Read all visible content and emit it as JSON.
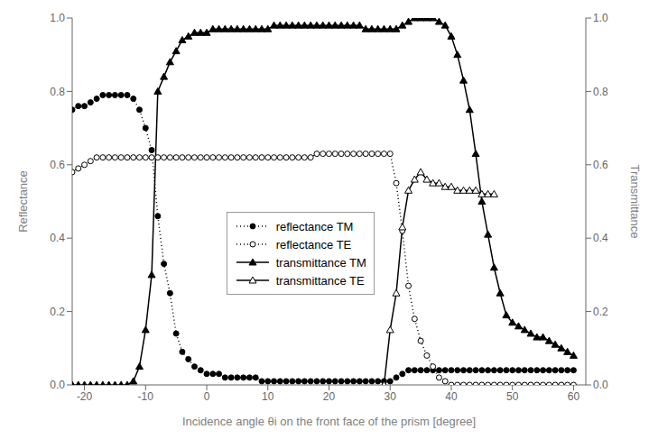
{
  "chart_data": {
    "type": "line",
    "xlabel": "Incidence angle θi on the front face of the prism  [degree]",
    "ylabel": "Reflectance",
    "y2label": "Transmittance",
    "xlim": [
      -22,
      62
    ],
    "xticks": [
      -20,
      -10,
      0,
      10,
      20,
      30,
      40,
      50,
      60
    ],
    "ylim": [
      0.0,
      1.0
    ],
    "yticks": [
      {
        "value": 0,
        "label": "0.0"
      },
      0.2,
      0.4,
      0.6,
      0.8,
      {
        "value": 1,
        "label": "1.0"
      }
    ],
    "y2lim": [
      0.0,
      1.0
    ],
    "y2ticks": [
      {
        "value": 0,
        "label": "0.0"
      },
      0.2,
      0.4,
      0.6,
      0.8,
      {
        "value": 1,
        "label": "1.0"
      }
    ],
    "grid": false,
    "legend": "lower center",
    "series": [
      {
        "name": "reflectance TM",
        "color": "#000000",
        "marker": "circle",
        "line_style": "dotted",
        "x": [
          -22,
          -21,
          -20,
          -19,
          -18,
          -17,
          -16,
          -15,
          -14,
          -13,
          -12,
          -11,
          -10,
          -9,
          -8,
          -7,
          -6,
          -5,
          -4,
          -3,
          -2,
          -1,
          0,
          1,
          2,
          3,
          4,
          5,
          6,
          7,
          8,
          9,
          10,
          11,
          12,
          13,
          14,
          15,
          16,
          17,
          18,
          19,
          20,
          21,
          22,
          23,
          24,
          25,
          26,
          27,
          28,
          29,
          30,
          31,
          32,
          33,
          34,
          35,
          36,
          37,
          38,
          39,
          40,
          41,
          42,
          43,
          44,
          45,
          46,
          47,
          48,
          49,
          50,
          51,
          52,
          53,
          54,
          55,
          56,
          57,
          58,
          59,
          60
        ],
        "values": [
          0.75,
          0.76,
          0.76,
          0.77,
          0.78,
          0.79,
          0.79,
          0.79,
          0.79,
          0.79,
          0.78,
          0.75,
          0.7,
          0.64,
          0.46,
          0.33,
          0.25,
          0.14,
          0.09,
          0.07,
          0.05,
          0.04,
          0.03,
          0.03,
          0.03,
          0.02,
          0.02,
          0.02,
          0.02,
          0.02,
          0.02,
          0.01,
          0.01,
          0.01,
          0.01,
          0.01,
          0.01,
          0.01,
          0.01,
          0.01,
          0.01,
          0.01,
          0.01,
          0.01,
          0.01,
          0.01,
          0.01,
          0.01,
          0.01,
          0.01,
          0.01,
          0.01,
          0.01,
          0.02,
          0.03,
          0.04,
          0.04,
          0.04,
          0.04,
          0.04,
          0.04,
          0.04,
          0.04,
          0.04,
          0.04,
          0.04,
          0.04,
          0.04,
          0.04,
          0.04,
          0.04,
          0.04,
          0.04,
          0.04,
          0.04,
          0.04,
          0.04,
          0.04,
          0.04,
          0.04,
          0.04,
          0.04,
          0.04
        ]
      },
      {
        "name": "reflectance TE",
        "color": "#000000",
        "marker": "circle_open",
        "line_style": "dotted",
        "x": [
          -22,
          -21,
          -20,
          -19,
          -18,
          -17,
          -16,
          -15,
          -14,
          -13,
          -12,
          -11,
          -10,
          -9,
          -8,
          -7,
          -6,
          -5,
          -4,
          -3,
          -2,
          -1,
          0,
          1,
          2,
          3,
          4,
          5,
          6,
          7,
          8,
          9,
          10,
          11,
          12,
          13,
          14,
          15,
          16,
          17,
          18,
          19,
          20,
          21,
          22,
          23,
          24,
          25,
          26,
          27,
          28,
          29,
          30,
          31,
          32,
          33,
          34,
          35,
          36,
          37,
          38,
          39,
          40,
          41,
          42,
          43,
          44,
          45,
          46,
          47,
          48,
          49,
          50,
          51,
          52,
          53,
          54,
          55,
          56,
          57,
          58,
          59,
          60
        ],
        "values": [
          0.58,
          0.59,
          0.6,
          0.61,
          0.62,
          0.62,
          0.62,
          0.62,
          0.62,
          0.62,
          0.62,
          0.62,
          0.62,
          0.62,
          0.62,
          0.62,
          0.62,
          0.62,
          0.62,
          0.62,
          0.62,
          0.62,
          0.62,
          0.62,
          0.62,
          0.62,
          0.62,
          0.62,
          0.62,
          0.62,
          0.62,
          0.62,
          0.62,
          0.62,
          0.62,
          0.62,
          0.62,
          0.62,
          0.62,
          0.62,
          0.63,
          0.63,
          0.63,
          0.63,
          0.63,
          0.63,
          0.63,
          0.63,
          0.63,
          0.63,
          0.63,
          0.63,
          0.63,
          0.55,
          0.42,
          0.27,
          0.18,
          0.12,
          0.08,
          0.05,
          0.02,
          0.01,
          0.0,
          0.0,
          0.0,
          0.0,
          0.0,
          0.0,
          0.0,
          0.0,
          0.0,
          0.0,
          0.0,
          0.0,
          0.0,
          0.0,
          0.0,
          0.0,
          0.0,
          0.0,
          0.0,
          0.0,
          0.0
        ]
      },
      {
        "name": "transmittance TM",
        "color": "#000000",
        "marker": "triangle",
        "line_style": "solid",
        "axis": "y2",
        "x": [
          -22,
          -21,
          -20,
          -19,
          -18,
          -17,
          -16,
          -15,
          -14,
          -13,
          -12,
          -11,
          -10,
          -9,
          -8,
          -7,
          -6,
          -5,
          -4,
          -3,
          -2,
          -1,
          0,
          1,
          2,
          3,
          4,
          5,
          6,
          7,
          8,
          9,
          10,
          11,
          12,
          13,
          14,
          15,
          16,
          17,
          18,
          19,
          20,
          21,
          22,
          23,
          24,
          25,
          26,
          27,
          28,
          29,
          30,
          31,
          32,
          33,
          34,
          35,
          36,
          37,
          38,
          39,
          40,
          41,
          42,
          43,
          44,
          45,
          46,
          47,
          48,
          49,
          50,
          51,
          52,
          53,
          54,
          55,
          56,
          57,
          58,
          59,
          60
        ],
        "values": [
          0.0,
          0.0,
          0.0,
          0.0,
          0.0,
          0.0,
          0.0,
          0.0,
          0.0,
          0.0,
          0.01,
          0.05,
          0.15,
          0.3,
          0.8,
          0.84,
          0.88,
          0.91,
          0.94,
          0.95,
          0.96,
          0.96,
          0.96,
          0.97,
          0.97,
          0.97,
          0.97,
          0.97,
          0.97,
          0.97,
          0.97,
          0.97,
          0.97,
          0.98,
          0.98,
          0.98,
          0.98,
          0.98,
          0.98,
          0.98,
          0.98,
          0.98,
          0.98,
          0.98,
          0.98,
          0.98,
          0.98,
          0.98,
          0.97,
          0.97,
          0.97,
          0.97,
          0.97,
          0.97,
          0.98,
          0.99,
          1.0,
          1.0,
          1.0,
          1.0,
          0.99,
          0.98,
          0.95,
          0.9,
          0.83,
          0.75,
          0.63,
          0.5,
          0.41,
          0.32,
          0.25,
          0.19,
          0.17,
          0.16,
          0.15,
          0.14,
          0.13,
          0.13,
          0.12,
          0.11,
          0.1,
          0.09,
          0.08
        ]
      },
      {
        "name": "transmittance TE",
        "color": "#000000",
        "marker": "triangle_open",
        "line_style": "solid",
        "axis": "y2",
        "x": [
          29,
          30,
          31,
          32,
          33,
          34,
          35,
          36,
          37,
          38,
          39,
          40,
          41,
          42,
          43,
          44,
          45,
          46,
          47
        ],
        "values": [
          0.0,
          0.15,
          0.25,
          0.43,
          0.53,
          0.56,
          0.58,
          0.56,
          0.55,
          0.55,
          0.54,
          0.54,
          0.53,
          0.53,
          0.53,
          0.53,
          0.52,
          0.52,
          0.52
        ]
      }
    ]
  }
}
